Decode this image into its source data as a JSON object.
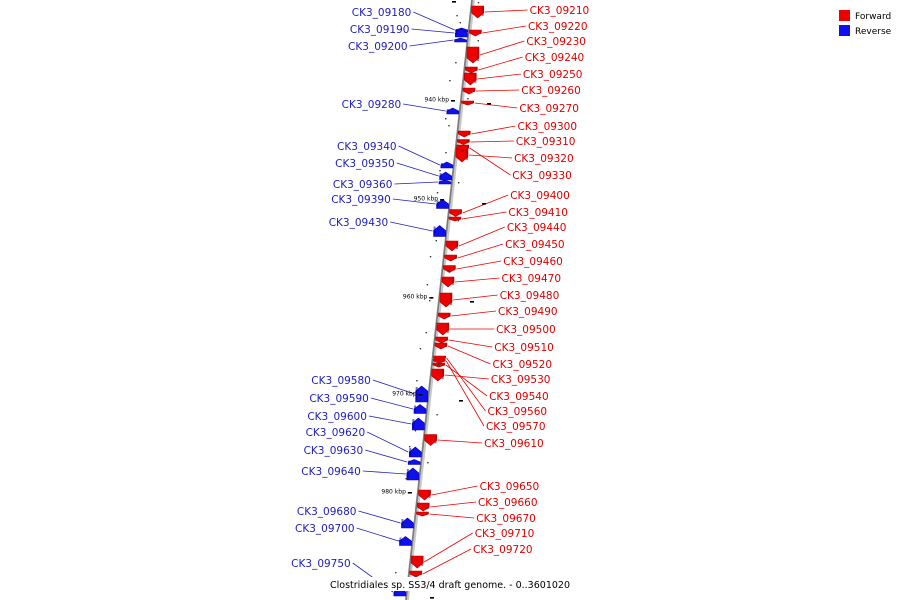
{
  "caption": "Clostridiales sp. SS3/4 draft genome. - 0..3601020",
  "colors": {
    "forward": "#ee0000",
    "reverse": "#1010ee",
    "line_fwd": "#ee0000",
    "line_rev": "#2020bb"
  },
  "legend": [
    {
      "label": "Forward",
      "color": "#ee0000"
    },
    {
      "label": "Reverse",
      "color": "#1010ee"
    }
  ],
  "kbp_ticks": [
    {
      "label": "940 kbp",
      "pos_kbp": 940
    },
    {
      "label": "950 kbp",
      "pos_kbp": 950
    },
    {
      "label": "960 kbp",
      "pos_kbp": 960
    },
    {
      "label": "970 kbp",
      "pos_kbp": 970
    },
    {
      "label": "980 kbp",
      "pos_kbp": 980
    }
  ],
  "genes_forward": [
    {
      "id": "CK3_09210"
    },
    {
      "id": "CK3_09220"
    },
    {
      "id": "CK3_09230"
    },
    {
      "id": "CK3_09240"
    },
    {
      "id": "CK3_09250"
    },
    {
      "id": "CK3_09260"
    },
    {
      "id": "CK3_09270"
    },
    {
      "id": "CK3_09300"
    },
    {
      "id": "CK3_09310"
    },
    {
      "id": "CK3_09320"
    },
    {
      "id": "CK3_09330"
    },
    {
      "id": "CK3_09400"
    },
    {
      "id": "CK3_09410"
    },
    {
      "id": "CK3_09440"
    },
    {
      "id": "CK3_09450"
    },
    {
      "id": "CK3_09460"
    },
    {
      "id": "CK3_09470"
    },
    {
      "id": "CK3_09480"
    },
    {
      "id": "CK3_09490"
    },
    {
      "id": "CK3_09500"
    },
    {
      "id": "CK3_09510"
    },
    {
      "id": "CK3_09520"
    },
    {
      "id": "CK3_09530"
    },
    {
      "id": "CK3_09540"
    },
    {
      "id": "CK3_09560"
    },
    {
      "id": "CK3_09570"
    },
    {
      "id": "CK3_09610"
    },
    {
      "id": "CK3_09650"
    },
    {
      "id": "CK3_09660"
    },
    {
      "id": "CK3_09670"
    },
    {
      "id": "CK3_09710"
    },
    {
      "id": "CK3_09720"
    }
  ],
  "genes_reverse": [
    {
      "id": "CK3_09180"
    },
    {
      "id": "CK3_09190"
    },
    {
      "id": "CK3_09200"
    },
    {
      "id": "CK3_09280"
    },
    {
      "id": "CK3_09340"
    },
    {
      "id": "CK3_09350"
    },
    {
      "id": "CK3_09360"
    },
    {
      "id": "CK3_09390"
    },
    {
      "id": "CK3_09430"
    },
    {
      "id": "CK3_09580"
    },
    {
      "id": "CK3_09590"
    },
    {
      "id": "CK3_09600"
    },
    {
      "id": "CK3_09620"
    },
    {
      "id": "CK3_09630"
    },
    {
      "id": "CK3_09640"
    },
    {
      "id": "CK3_09680"
    },
    {
      "id": "CK3_09700"
    },
    {
      "id": "CK3_09750"
    }
  ]
}
